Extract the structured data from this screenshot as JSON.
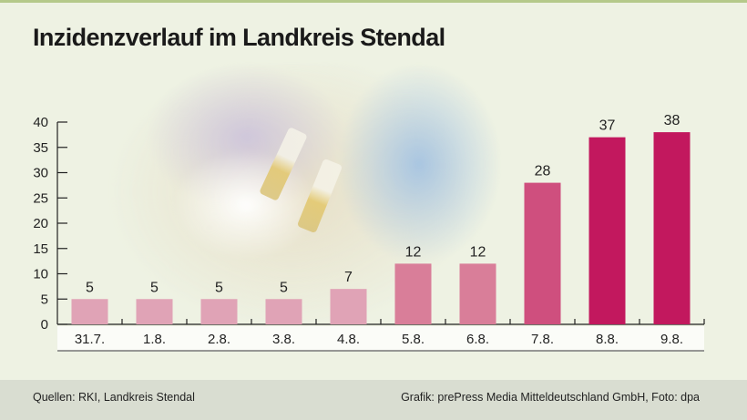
{
  "title": "Inzidenzverlauf im Landkreis Stendal",
  "chart_data": {
    "type": "bar",
    "categories": [
      "31.7.",
      "1.8.",
      "2.8.",
      "3.8.",
      "4.8.",
      "5.8.",
      "6.8.",
      "7.8.",
      "8.8.",
      "9.8."
    ],
    "values": [
      5,
      5,
      5,
      5,
      7,
      12,
      12,
      28,
      37,
      38
    ],
    "colors": [
      "#e0a3b6",
      "#e0a3b6",
      "#e0a3b6",
      "#e0a3b6",
      "#e0a3b6",
      "#d97e99",
      "#d97e99",
      "#cf4f7e",
      "#c2185e",
      "#c2185e"
    ],
    "ylim": [
      0,
      40
    ],
    "yticks": [
      0,
      5,
      10,
      15,
      20,
      25,
      30,
      35,
      40
    ],
    "grid": false
  },
  "footer": {
    "source": "Quellen: RKI, Landkreis Stendal",
    "credit": "Grafik: prePress Media Mitteldeutschland GmbH, Foto: dpa"
  }
}
